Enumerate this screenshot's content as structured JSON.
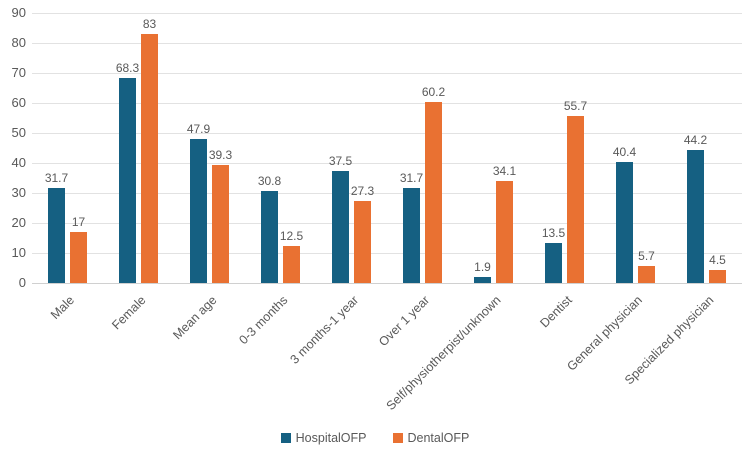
{
  "chart_data": {
    "type": "bar",
    "title": "",
    "xlabel": "",
    "ylabel": "",
    "categories": [
      "Male",
      "Female",
      "Mean age",
      "0-3 months",
      "3 months-1 year",
      "Over 1 year",
      "Self/physiotherpist/unknown",
      "Dentist",
      "General physician",
      "Specialized physician"
    ],
    "series": [
      {
        "name": "HospitalOFP",
        "color": "#156082",
        "values": [
          31.7,
          68.3,
          47.9,
          30.8,
          37.5,
          31.7,
          1.9,
          13.5,
          40.4,
          44.2
        ]
      },
      {
        "name": "DentalOFP",
        "color": "#E97132",
        "values": [
          17,
          83,
          39.3,
          12.5,
          27.3,
          60.2,
          34.1,
          55.7,
          5.7,
          4.5
        ]
      }
    ],
    "ylim": [
      0,
      90
    ],
    "ytick_step": 10,
    "yticks": [
      0,
      10,
      20,
      30,
      40,
      50,
      60,
      70,
      80,
      90
    ],
    "grid": true,
    "legend_position": "bottom",
    "data_labels_shown": true
  },
  "colors": {
    "gridline": "#e2e2e2",
    "axis_line": "#d0d0d0",
    "text": "#595959",
    "background": "#ffffff"
  }
}
